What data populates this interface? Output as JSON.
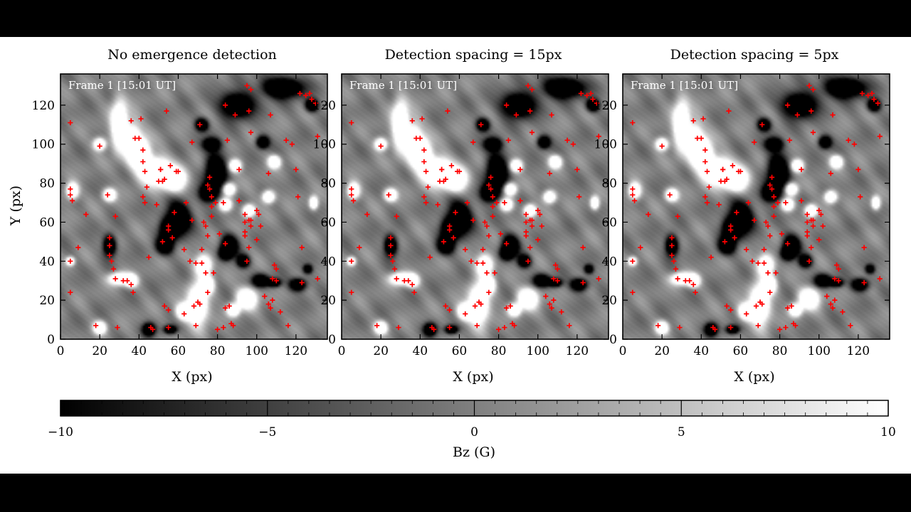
{
  "chart_data": [
    {
      "type": "heatmap",
      "title": "No emergence detection",
      "frame_label": "Frame 1 [15:01 UT]",
      "xlabel": "X (px)",
      "ylabel": "Y (px)",
      "xlim": [
        0,
        136
      ],
      "ylim": [
        0,
        136
      ],
      "xticks": [
        0,
        20,
        40,
        60,
        80,
        100,
        120
      ],
      "yticks": [
        0,
        20,
        40,
        60,
        80,
        100,
        120
      ],
      "marker": "+",
      "marker_color": "#ff0000"
    },
    {
      "type": "heatmap",
      "title": "Detection spacing = 15px",
      "frame_label": "Frame 1 [15:01 UT]",
      "xlabel": "X (px)",
      "ylabel": "",
      "xlim": [
        0,
        136
      ],
      "ylim": [
        0,
        136
      ],
      "xticks": [
        0,
        20,
        40,
        60,
        80,
        100,
        120
      ],
      "yticks": [
        0,
        20,
        40,
        60,
        80,
        100,
        120
      ],
      "marker": "+",
      "marker_color": "#ff0000"
    },
    {
      "type": "heatmap",
      "title": "Detection spacing = 5px",
      "frame_label": "Frame 1 [15:01 UT]",
      "xlabel": "X (px)",
      "ylabel": "",
      "xlim": [
        0,
        136
      ],
      "ylim": [
        0,
        136
      ],
      "xticks": [
        0,
        20,
        40,
        60,
        80,
        100,
        120
      ],
      "yticks": [
        0,
        20,
        40,
        60,
        80,
        100,
        120
      ],
      "marker": "+",
      "marker_color": "#ff0000"
    }
  ],
  "field": {
    "positive": [
      [
        30,
        110,
        4,
        12
      ],
      [
        37,
        100,
        4,
        10
      ],
      [
        42,
        93,
        4,
        9
      ],
      [
        50,
        86,
        6,
        7
      ],
      [
        58,
        82,
        6,
        6
      ],
      [
        20,
        100,
        3,
        3
      ],
      [
        25,
        74,
        3,
        3
      ],
      [
        6,
        76,
        3,
        4
      ],
      [
        30,
        31,
        5,
        3
      ],
      [
        36,
        30,
        3,
        3
      ],
      [
        70,
        18,
        5,
        10
      ],
      [
        63,
        14,
        4,
        4
      ],
      [
        95,
        21,
        5,
        5
      ],
      [
        109,
        91,
        3,
        3
      ],
      [
        106,
        73,
        3,
        3
      ],
      [
        129,
        70,
        2,
        3
      ],
      [
        86,
        77,
        3,
        3
      ],
      [
        89,
        89,
        3,
        3
      ],
      [
        73,
        38,
        4,
        5
      ],
      [
        75,
        28,
        3,
        4
      ],
      [
        84,
        69,
        3,
        3
      ],
      [
        96,
        66,
        3,
        3
      ],
      [
        5,
        40,
        2,
        2
      ],
      [
        20,
        6,
        3,
        3
      ],
      [
        88,
        15,
        3,
        3
      ]
    ],
    "negative": [
      [
        79,
        85,
        5,
        10
      ],
      [
        75,
        75,
        4,
        4
      ],
      [
        60,
        62,
        6,
        8
      ],
      [
        55,
        56,
        4,
        5
      ],
      [
        53,
        48,
        4,
        4
      ],
      [
        86,
        48,
        4,
        5
      ],
      [
        90,
        120,
        8,
        6
      ],
      [
        113,
        129,
        10,
        5
      ],
      [
        128,
        120,
        3,
        3
      ],
      [
        77,
        100,
        4,
        3
      ],
      [
        72,
        110,
        3,
        3
      ],
      [
        103,
        101,
        3,
        3
      ],
      [
        25,
        48,
        3,
        5
      ],
      [
        102,
        30,
        4,
        3
      ],
      [
        109,
        29,
        3,
        2
      ],
      [
        121,
        28,
        4,
        3
      ],
      [
        93,
        40,
        3,
        3
      ],
      [
        45,
        5,
        3,
        3
      ],
      [
        56,
        5,
        3,
        2
      ],
      [
        126,
        36,
        2,
        2
      ],
      [
        84,
        44,
        3,
        3
      ]
    ],
    "vmin": -10,
    "vmax": 10
  },
  "detections": [
    [
      5,
      111
    ],
    [
      5,
      77
    ],
    [
      5,
      74
    ],
    [
      6,
      71
    ],
    [
      5,
      40
    ],
    [
      5,
      24
    ],
    [
      9,
      47
    ],
    [
      13,
      64
    ],
    [
      18,
      7
    ],
    [
      20,
      99
    ],
    [
      24,
      74
    ],
    [
      25,
      52
    ],
    [
      25,
      48
    ],
    [
      25,
      43
    ],
    [
      26,
      40
    ],
    [
      27,
      36
    ],
    [
      28,
      63
    ],
    [
      29,
      6
    ],
    [
      28,
      31
    ],
    [
      32,
      30
    ],
    [
      34,
      30
    ],
    [
      36,
      28
    ],
    [
      37,
      24
    ],
    [
      36,
      112
    ],
    [
      38,
      103
    ],
    [
      40,
      103
    ],
    [
      41,
      113
    ],
    [
      42,
      97
    ],
    [
      42,
      91
    ],
    [
      43,
      86
    ],
    [
      44,
      78
    ],
    [
      42,
      73
    ],
    [
      43,
      70
    ],
    [
      45,
      42
    ],
    [
      46,
      6
    ],
    [
      47,
      5
    ],
    [
      49,
      69
    ],
    [
      50,
      81
    ],
    [
      51,
      87
    ],
    [
      51,
      87
    ],
    [
      52,
      81
    ],
    [
      52,
      50
    ],
    [
      53,
      17
    ],
    [
      53,
      82
    ],
    [
      55,
      15
    ],
    [
      55,
      6
    ],
    [
      55,
      58
    ],
    [
      55,
      56
    ],
    [
      54,
      117
    ],
    [
      56,
      89
    ],
    [
      57,
      52
    ],
    [
      58,
      65
    ],
    [
      59,
      86
    ],
    [
      60,
      86
    ],
    [
      63,
      46
    ],
    [
      63,
      13
    ],
    [
      64,
      70
    ],
    [
      66,
      40
    ],
    [
      67,
      61
    ],
    [
      67,
      101
    ],
    [
      69,
      7
    ],
    [
      69,
      39
    ],
    [
      71,
      110
    ],
    [
      72,
      46
    ],
    [
      72,
      39
    ],
    [
      73,
      60
    ],
    [
      74,
      58
    ],
    [
      75,
      79
    ],
    [
      76,
      83
    ],
    [
      76,
      77
    ],
    [
      77,
      73
    ],
    [
      77,
      68
    ],
    [
      77,
      63
    ],
    [
      74,
      34
    ],
    [
      75,
      24
    ],
    [
      75,
      53
    ],
    [
      79,
      70
    ],
    [
      78,
      34
    ],
    [
      80,
      5
    ],
    [
      81,
      54
    ],
    [
      83,
      6
    ],
    [
      83,
      70
    ],
    [
      84,
      16
    ],
    [
      84,
      49
    ],
    [
      84,
      120
    ],
    [
      86,
      17
    ],
    [
      85,
      102
    ],
    [
      87,
      8
    ],
    [
      88,
      7
    ],
    [
      89,
      115
    ],
    [
      91,
      87
    ],
    [
      91,
      71
    ],
    [
      94,
      55
    ],
    [
      94,
      60
    ],
    [
      94,
      64
    ],
    [
      94,
      53
    ],
    [
      95,
      130
    ],
    [
      96,
      117
    ],
    [
      95,
      40
    ],
    [
      97,
      58
    ],
    [
      96,
      47
    ],
    [
      97,
      128
    ],
    [
      97,
      106
    ],
    [
      100,
      66
    ],
    [
      100,
      51
    ],
    [
      101,
      64
    ],
    [
      102,
      58
    ],
    [
      104,
      22
    ],
    [
      106,
      85
    ],
    [
      108,
      31
    ],
    [
      108,
      20
    ],
    [
      106,
      18
    ],
    [
      107,
      16
    ],
    [
      107,
      115
    ],
    [
      109,
      38
    ],
    [
      110,
      36
    ],
    [
      110,
      30
    ],
    [
      112,
      14
    ],
    [
      115,
      102
    ],
    [
      118,
      100
    ],
    [
      120,
      87
    ],
    [
      121,
      73
    ],
    [
      123,
      47
    ],
    [
      123,
      29
    ],
    [
      122,
      126
    ],
    [
      125,
      125
    ],
    [
      127,
      126
    ],
    [
      128,
      123
    ],
    [
      130,
      121
    ],
    [
      131,
      31
    ],
    [
      131,
      104
    ],
    [
      116,
      7
    ],
    [
      68,
      17
    ],
    [
      70,
      19
    ],
    [
      71,
      18
    ],
    [
      96,
      61
    ],
    [
      97,
      61
    ]
  ],
  "colorbar": {
    "label": "Bz (G)",
    "ticks": [
      -10,
      -5,
      0,
      5,
      10
    ],
    "tick_labels": [
      "−10",
      "−5",
      "0",
      "5",
      "10"
    ],
    "cmap": "gray"
  }
}
